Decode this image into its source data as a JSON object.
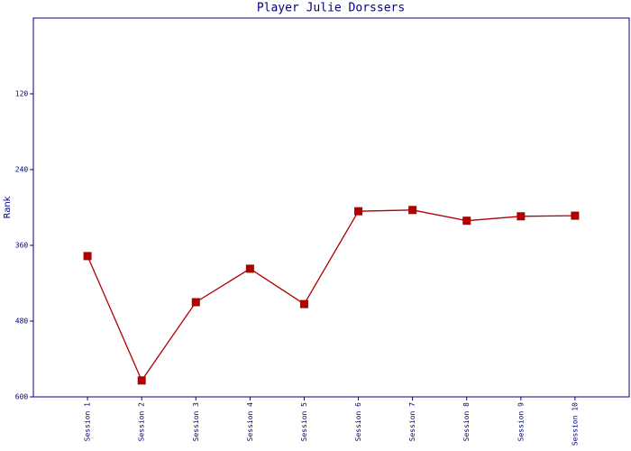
{
  "chart_data": {
    "type": "line",
    "title": "Player Julie Dorssers",
    "y_label": "Rank",
    "categories": [
      "Session 1",
      "Session 2",
      "Session 3",
      "Session 4",
      "Session 5",
      "Session 6",
      "Session 7",
      "Session 8",
      "Session 9",
      "Session 10"
    ],
    "series": [
      {
        "name": "Rank",
        "color": "#b00000",
        "values": [
          377,
          574,
          450,
          397,
          453,
          306,
          304,
          321,
          314,
          313
        ]
      }
    ],
    "ylim": [
      600,
      0
    ],
    "yticks": [
      120,
      240,
      360,
      480,
      600
    ]
  }
}
